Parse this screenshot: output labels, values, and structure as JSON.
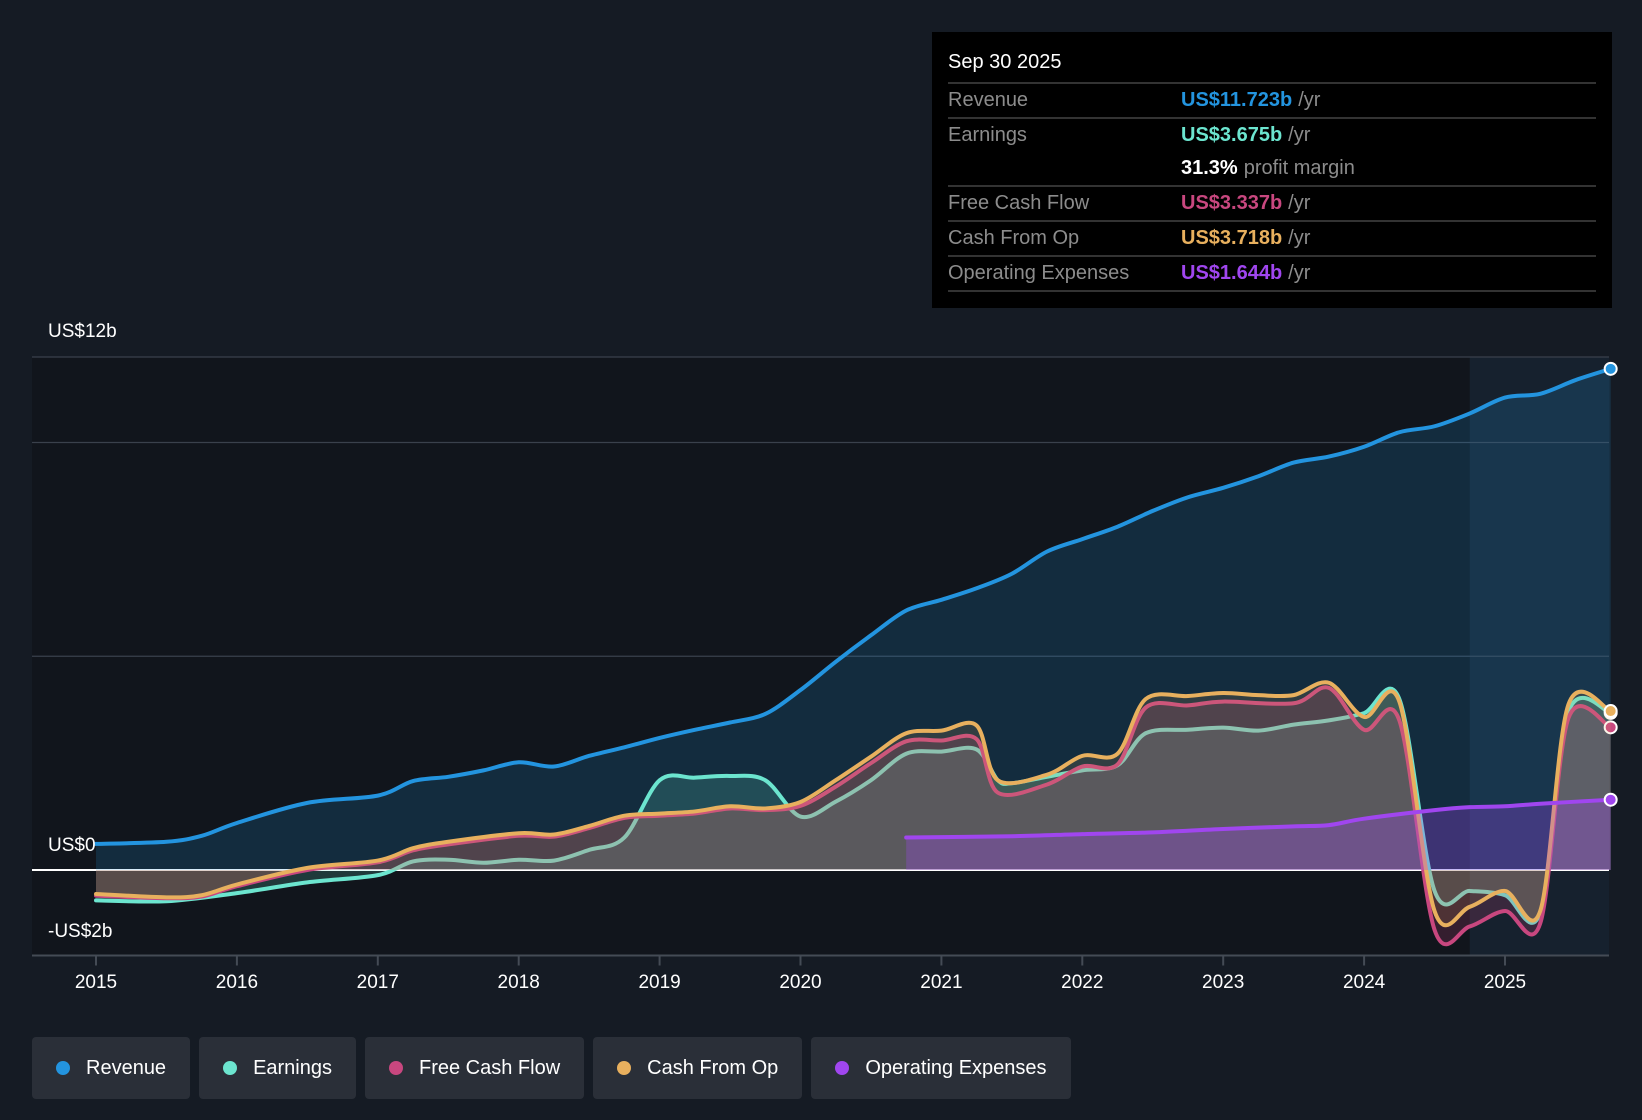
{
  "tooltip": {
    "date": "Sep 30 2025",
    "rows": [
      {
        "label": "Revenue",
        "value": "US$11.723b",
        "unit": "/yr",
        "color": "#2394df"
      },
      {
        "label": "Earnings",
        "value": "US$3.675b",
        "unit": "/yr",
        "color": "#6ce5cf"
      },
      {
        "label": "",
        "value": "31.3%",
        "unit": "profit margin",
        "color": "#ffffff"
      },
      {
        "label": "Free Cash Flow",
        "value": "US$3.337b",
        "unit": "/yr",
        "color": "#c8477f"
      },
      {
        "label": "Cash From Op",
        "value": "US$3.718b",
        "unit": "/yr",
        "color": "#e8b05e"
      },
      {
        "label": "Operating Expenses",
        "value": "US$1.644b",
        "unit": "/yr",
        "color": "#a046ef"
      }
    ]
  },
  "chart_data": {
    "type": "line",
    "title": "",
    "xlabel": "",
    "ylabel": "",
    "ylim": [
      -2,
      12
    ],
    "xlim": [
      2014.55,
      2025.75
    ],
    "y_tick_labels": [
      "US$12b",
      "US$0",
      "-US$2b"
    ],
    "gridlines": [
      12,
      10,
      5,
      0
    ],
    "x_ticks": [
      "2015",
      "2016",
      "2017",
      "2018",
      "2019",
      "2020",
      "2021",
      "2022",
      "2023",
      "2024",
      "2025"
    ],
    "highlight_from": 2024.75,
    "legend": [
      "Revenue",
      "Earnings",
      "Free Cash Flow",
      "Cash From Op",
      "Operating Expenses"
    ],
    "legend_placement": "bottom",
    "series": [
      {
        "name": "Revenue",
        "color": "#2394df",
        "x": [
          2015,
          2015.5,
          2015.75,
          2016,
          2016.5,
          2017,
          2017.25,
          2017.5,
          2017.75,
          2018,
          2018.25,
          2018.5,
          2018.75,
          2019,
          2019.25,
          2019.5,
          2019.75,
          2020,
          2020.25,
          2020.5,
          2020.75,
          2021,
          2021.25,
          2021.5,
          2021.75,
          2022,
          2022.25,
          2022.5,
          2022.75,
          2023,
          2023.25,
          2023.5,
          2023.75,
          2024,
          2024.25,
          2024.5,
          2024.75,
          2025,
          2025.25,
          2025.5,
          2025.75
        ],
        "y": [
          0.61,
          0.66,
          0.8,
          1.1,
          1.57,
          1.74,
          2.08,
          2.18,
          2.33,
          2.52,
          2.42,
          2.67,
          2.87,
          3.09,
          3.28,
          3.45,
          3.65,
          4.21,
          4.87,
          5.49,
          6.07,
          6.32,
          6.59,
          6.93,
          7.45,
          7.74,
          8.03,
          8.4,
          8.72,
          8.94,
          9.21,
          9.53,
          9.67,
          9.9,
          10.24,
          10.38,
          10.68,
          11.05,
          11.14,
          11.46,
          11.723
        ]
      },
      {
        "name": "Earnings",
        "color": "#6ce5cf",
        "x": [
          2015,
          2015.5,
          2016,
          2016.5,
          2017,
          2017.25,
          2017.5,
          2017.75,
          2018,
          2018.25,
          2018.5,
          2018.75,
          2019,
          2019.25,
          2019.5,
          2019.75,
          2020,
          2020.25,
          2020.5,
          2020.75,
          2021,
          2021.25,
          2021.4,
          2021.5,
          2021.75,
          2022,
          2022.25,
          2022.45,
          2022.75,
          2023,
          2023.25,
          2023.5,
          2023.75,
          2024,
          2024.25,
          2024.5,
          2024.75,
          2025,
          2025.25,
          2025.45,
          2025.75
        ],
        "y": [
          -0.71,
          -0.73,
          -0.54,
          -0.29,
          -0.12,
          0.2,
          0.24,
          0.17,
          0.24,
          0.22,
          0.47,
          0.76,
          2.1,
          2.16,
          2.2,
          2.1,
          1.25,
          1.6,
          2.1,
          2.72,
          2.77,
          2.82,
          2.1,
          2.03,
          2.18,
          2.33,
          2.45,
          3.2,
          3.28,
          3.33,
          3.26,
          3.4,
          3.5,
          3.67,
          4.0,
          -0.49,
          -0.49,
          -0.59,
          -1.0,
          3.7,
          3.675
        ]
      },
      {
        "name": "Free Cash Flow",
        "color": "#c8477f",
        "x": [
          2015,
          2015.5,
          2015.75,
          2016,
          2016.5,
          2017,
          2017.25,
          2017.5,
          2018,
          2018.25,
          2018.5,
          2018.75,
          2019,
          2019.25,
          2019.5,
          2019.75,
          2020,
          2020.25,
          2020.5,
          2020.75,
          2021,
          2021.25,
          2021.4,
          2021.75,
          2022,
          2022.25,
          2022.45,
          2022.75,
          2023,
          2023.5,
          2023.75,
          2024,
          2024.25,
          2024.5,
          2024.75,
          2025,
          2025.25,
          2025.45,
          2025.75
        ],
        "y": [
          -0.6,
          -0.66,
          -0.62,
          -0.38,
          0.0,
          0.18,
          0.46,
          0.6,
          0.8,
          0.78,
          0.98,
          1.22,
          1.27,
          1.32,
          1.44,
          1.4,
          1.5,
          1.95,
          2.5,
          3.01,
          3.03,
          3.06,
          1.81,
          2.0,
          2.42,
          2.47,
          3.8,
          3.85,
          3.94,
          3.9,
          4.26,
          3.28,
          3.5,
          -1.4,
          -1.32,
          -0.96,
          -1.25,
          3.55,
          3.337
        ]
      },
      {
        "name": "Cash From Op",
        "color": "#e8b05e",
        "x": [
          2015,
          2015.5,
          2015.75,
          2016,
          2016.5,
          2017,
          2017.25,
          2017.5,
          2018,
          2018.25,
          2018.5,
          2018.75,
          2019,
          2019.25,
          2019.5,
          2019.75,
          2020,
          2020.25,
          2020.5,
          2020.75,
          2021,
          2021.25,
          2021.4,
          2021.75,
          2022,
          2022.25,
          2022.45,
          2022.75,
          2023,
          2023.25,
          2023.5,
          2023.75,
          2024,
          2024.25,
          2024.5,
          2024.75,
          2025,
          2025.25,
          2025.45,
          2025.75
        ],
        "y": [
          -0.56,
          -0.64,
          -0.59,
          -0.34,
          0.05,
          0.22,
          0.51,
          0.66,
          0.86,
          0.83,
          1.03,
          1.27,
          1.32,
          1.37,
          1.49,
          1.44,
          1.59,
          2.1,
          2.65,
          3.2,
          3.26,
          3.38,
          2.1,
          2.23,
          2.67,
          2.72,
          4.0,
          4.07,
          4.14,
          4.09,
          4.09,
          4.38,
          3.58,
          3.94,
          -0.96,
          -0.86,
          -0.49,
          -0.96,
          3.87,
          3.718
        ]
      },
      {
        "name": "Operating Expenses",
        "color": "#a046ef",
        "x": [
          2020.75,
          2021.5,
          2022,
          2022.5,
          2023,
          2023.5,
          2023.75,
          2024,
          2024.5,
          2024.75,
          2025,
          2025.25,
          2025.75
        ],
        "y": [
          0.76,
          0.79,
          0.84,
          0.88,
          0.96,
          1.02,
          1.05,
          1.2,
          1.4,
          1.47,
          1.49,
          1.55,
          1.644
        ]
      }
    ]
  }
}
